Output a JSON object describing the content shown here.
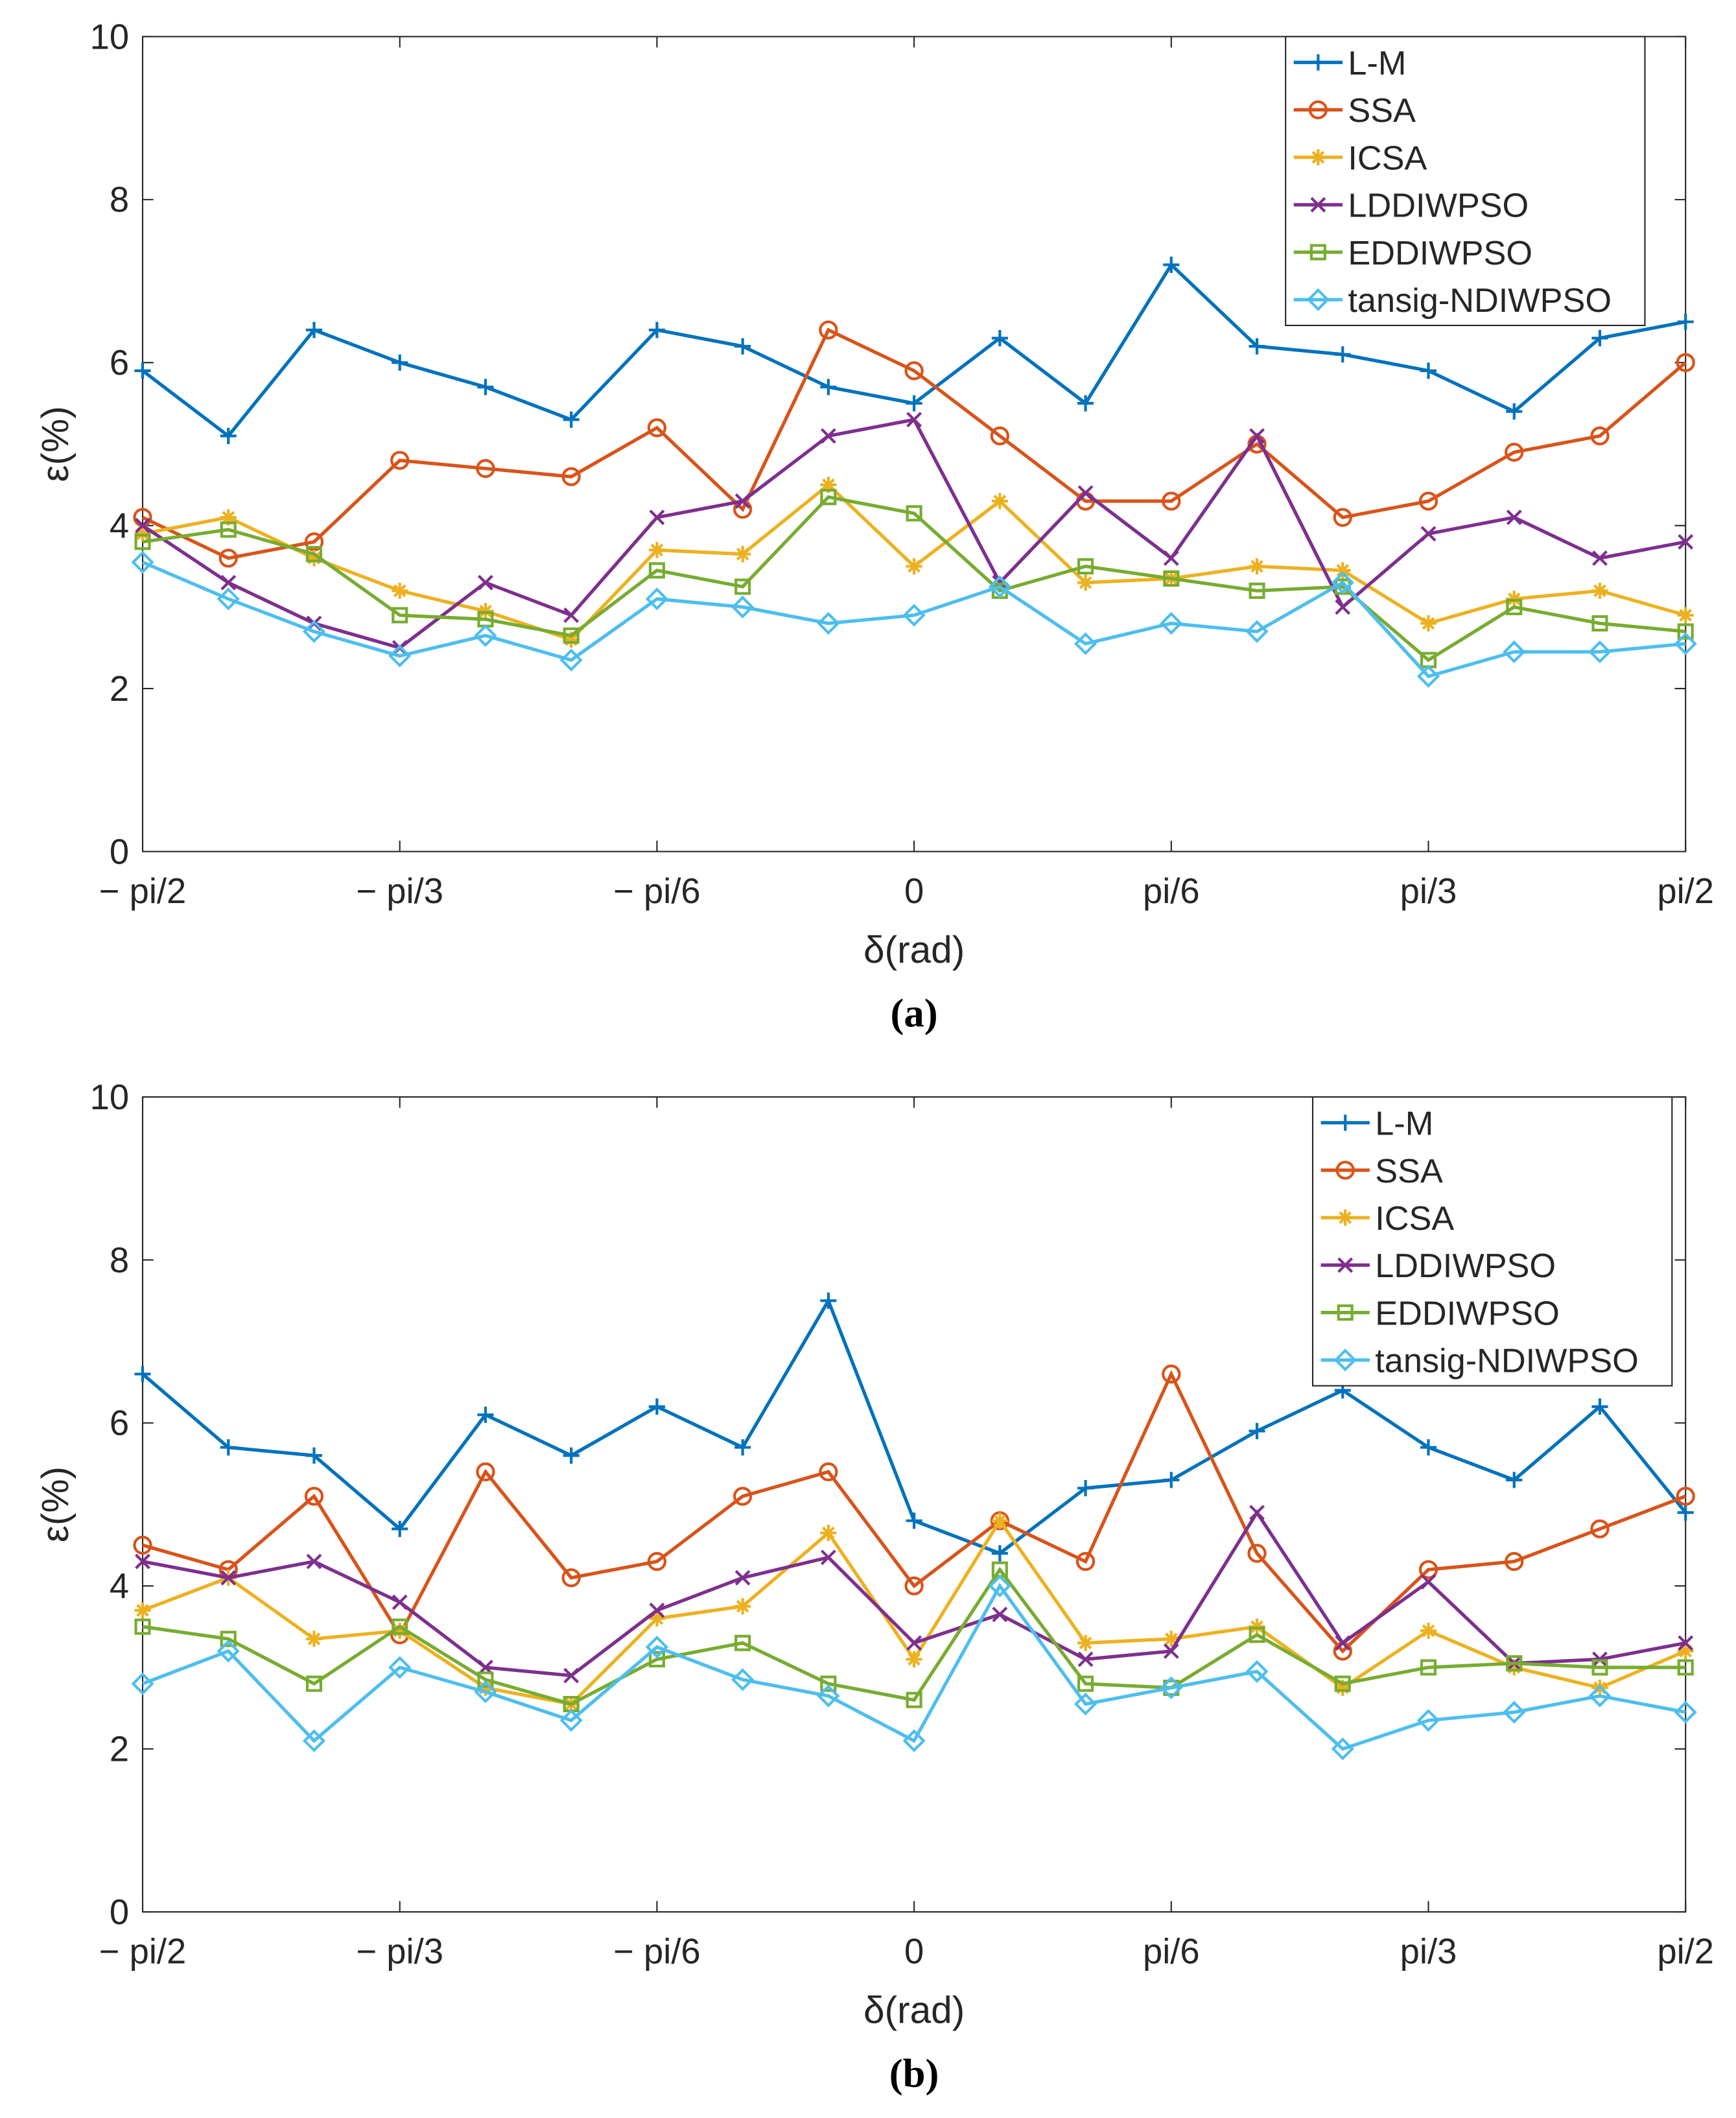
{
  "colors": [
    "#0072BD",
    "#D95319",
    "#EDB120",
    "#7E2F8E",
    "#77AC30",
    "#4DBEEE"
  ],
  "markers": [
    "plus",
    "circle",
    "asterisk",
    "cross",
    "square",
    "diamond"
  ],
  "chart_data": [
    {
      "type": "line",
      "panel_label": "a",
      "xlabel": "δ(rad)",
      "ylabel": "ε(%)",
      "ylim": [
        0,
        10
      ],
      "yticks": [
        0,
        2,
        4,
        6,
        8,
        10
      ],
      "xtick_labels": [
        "− pi/2",
        "− pi/3",
        "− pi/6",
        "0",
        "pi/6",
        "pi/3",
        "pi/2"
      ],
      "x_deg": [
        -90,
        -80,
        -70,
        -60,
        -50,
        -40,
        -30,
        -20,
        -10,
        0,
        10,
        20,
        30,
        40,
        50,
        60,
        70,
        80,
        90
      ],
      "legend_position": "top-right",
      "series": [
        {
          "name": "L-M",
          "values": [
            5.9,
            5.1,
            6.4,
            6.0,
            5.7,
            5.3,
            6.4,
            6.2,
            5.7,
            5.5,
            6.3,
            5.5,
            7.2,
            6.2,
            6.1,
            5.9,
            5.4,
            6.3,
            6.5
          ]
        },
        {
          "name": "SSA",
          "values": [
            4.1,
            3.6,
            3.8,
            4.8,
            4.7,
            4.6,
            5.2,
            4.2,
            6.4,
            5.9,
            5.1,
            4.3,
            4.3,
            5.0,
            4.1,
            4.3,
            4.9,
            5.1,
            6.0
          ]
        },
        {
          "name": "ICSA",
          "values": [
            3.9,
            4.1,
            3.6,
            3.2,
            2.95,
            2.6,
            3.7,
            3.65,
            4.5,
            3.5,
            4.3,
            3.3,
            3.35,
            3.5,
            3.45,
            2.8,
            3.1,
            3.2,
            2.9
          ]
        },
        {
          "name": "LDDIWPSO",
          "values": [
            4.0,
            3.3,
            2.8,
            2.5,
            3.3,
            2.9,
            4.1,
            4.3,
            5.1,
            5.3,
            3.3,
            4.4,
            3.6,
            5.1,
            3.0,
            3.9,
            4.1,
            3.6,
            3.8
          ]
        },
        {
          "name": "EDDIWPSO",
          "values": [
            3.8,
            3.95,
            3.65,
            2.9,
            2.85,
            2.65,
            3.45,
            3.25,
            4.35,
            4.15,
            3.2,
            3.5,
            3.35,
            3.2,
            3.25,
            2.35,
            3.0,
            2.8,
            2.7
          ]
        },
        {
          "name": "tansig-NDIWPSO",
          "values": [
            3.55,
            3.1,
            2.7,
            2.4,
            2.65,
            2.35,
            3.1,
            3.0,
            2.8,
            2.9,
            3.25,
            2.55,
            2.8,
            2.7,
            3.3,
            2.15,
            2.45,
            2.45,
            2.55
          ]
        }
      ]
    },
    {
      "type": "line",
      "panel_label": "b",
      "xlabel": "δ(rad)",
      "ylabel": "ε(%)",
      "ylim": [
        0,
        10
      ],
      "yticks": [
        0,
        2,
        4,
        6,
        8,
        10
      ],
      "xtick_labels": [
        "− pi/2",
        "− pi/3",
        "− pi/6",
        "0",
        "pi/6",
        "pi/3",
        "pi/2"
      ],
      "x_deg": [
        -90,
        -80,
        -70,
        -60,
        -50,
        -40,
        -30,
        -20,
        -10,
        0,
        10,
        20,
        30,
        40,
        50,
        60,
        70,
        80,
        90
      ],
      "legend_position": "top-right",
      "series": [
        {
          "name": "L-M",
          "values": [
            6.6,
            5.7,
            5.6,
            4.7,
            6.1,
            5.6,
            6.2,
            5.7,
            7.5,
            4.8,
            4.4,
            5.2,
            5.3,
            5.9,
            6.4,
            5.7,
            5.3,
            6.2,
            4.9
          ]
        },
        {
          "name": "SSA",
          "values": [
            4.5,
            4.2,
            5.1,
            3.4,
            5.4,
            4.1,
            4.3,
            5.1,
            5.4,
            4.0,
            4.8,
            4.3,
            6.6,
            4.4,
            3.2,
            4.2,
            4.3,
            4.7,
            5.1
          ]
        },
        {
          "name": "ICSA",
          "values": [
            3.7,
            4.1,
            3.35,
            3.45,
            2.75,
            2.55,
            3.6,
            3.75,
            4.65,
            3.1,
            4.8,
            3.3,
            3.35,
            3.5,
            2.75,
            3.45,
            3.0,
            2.75,
            3.2
          ]
        },
        {
          "name": "LDDIWPSO",
          "values": [
            4.3,
            4.1,
            4.3,
            3.8,
            3.0,
            2.9,
            3.7,
            4.1,
            4.35,
            3.3,
            3.65,
            3.1,
            3.2,
            4.9,
            3.3,
            4.05,
            3.05,
            3.1,
            3.3
          ]
        },
        {
          "name": "EDDIWPSO",
          "values": [
            3.5,
            3.35,
            2.8,
            3.5,
            2.85,
            2.55,
            3.1,
            3.3,
            2.8,
            2.6,
            4.2,
            2.8,
            2.75,
            3.4,
            2.8,
            3.0,
            3.05,
            3.0,
            3.0
          ]
        },
        {
          "name": "tansig-NDIWPSO",
          "values": [
            2.8,
            3.2,
            2.1,
            3.0,
            2.7,
            2.35,
            3.25,
            2.85,
            2.65,
            2.1,
            4.0,
            2.55,
            2.75,
            2.95,
            2.0,
            2.35,
            2.45,
            2.65,
            2.45
          ]
        }
      ]
    }
  ]
}
